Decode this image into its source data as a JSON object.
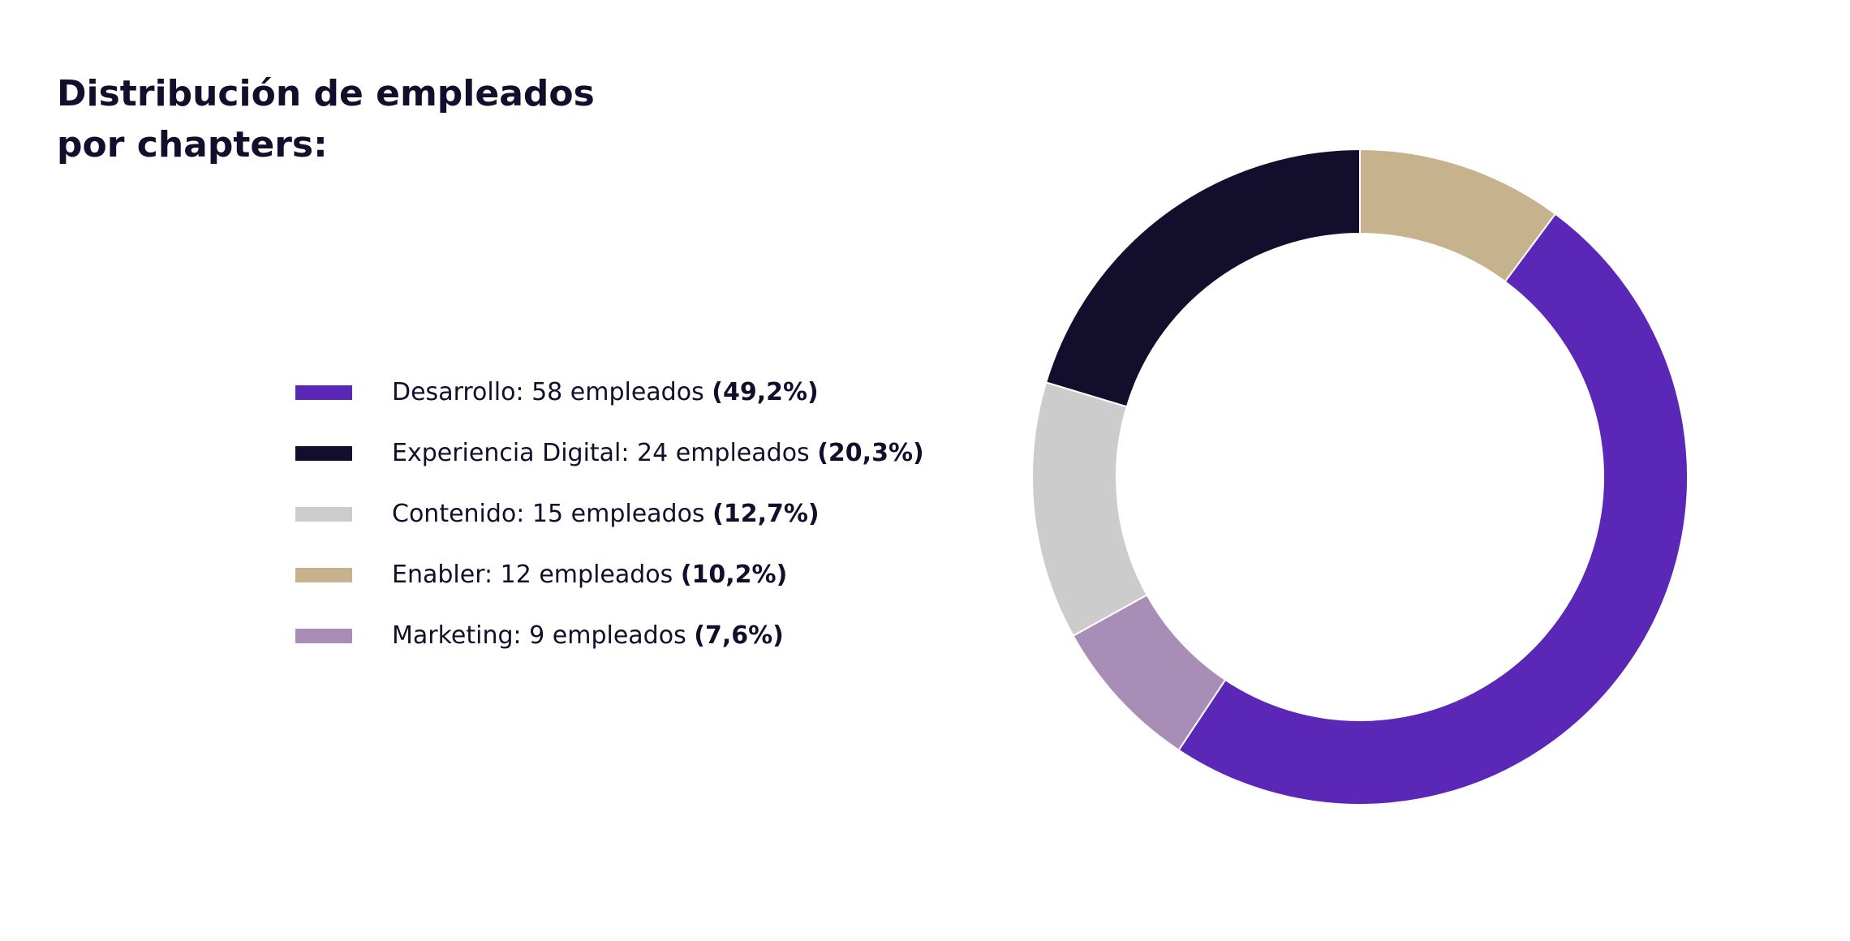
{
  "chart_data": {
    "type": "pie",
    "variant": "donut",
    "title_lines": [
      "Distribución de empleados",
      "por chapters:"
    ],
    "start_angle_deg": 0,
    "direction": "clockwise",
    "categories": [
      "Enabler",
      "Desarrollo",
      "Marketing",
      "Contenido",
      "Experiencia Digital"
    ],
    "values": [
      12,
      58,
      9,
      15,
      24
    ],
    "colors": [
      "#c6b28d",
      "#5b27b7",
      "#a88eb7",
      "#cccccc",
      "#120e2c"
    ],
    "legend": [
      {
        "label": "Desarrollo: 58 empleados ",
        "pct": "(49,2%)",
        "color": "#5b27b7"
      },
      {
        "label": "Experiencia Digital: 24 empleados ",
        "pct": "(20,3%)",
        "color": "#120e2c"
      },
      {
        "label": "Contenido: 15 empleados ",
        "pct": "(12,7%)",
        "color": "#cccccc"
      },
      {
        "label": "Enabler: 12 empleados ",
        "pct": "(10,2%)",
        "color": "#c6b28d"
      },
      {
        "label": "Marketing: 9 empleados ",
        "pct": "(7,6%)",
        "color": "#a88eb7"
      }
    ],
    "legend_placement": "left"
  }
}
